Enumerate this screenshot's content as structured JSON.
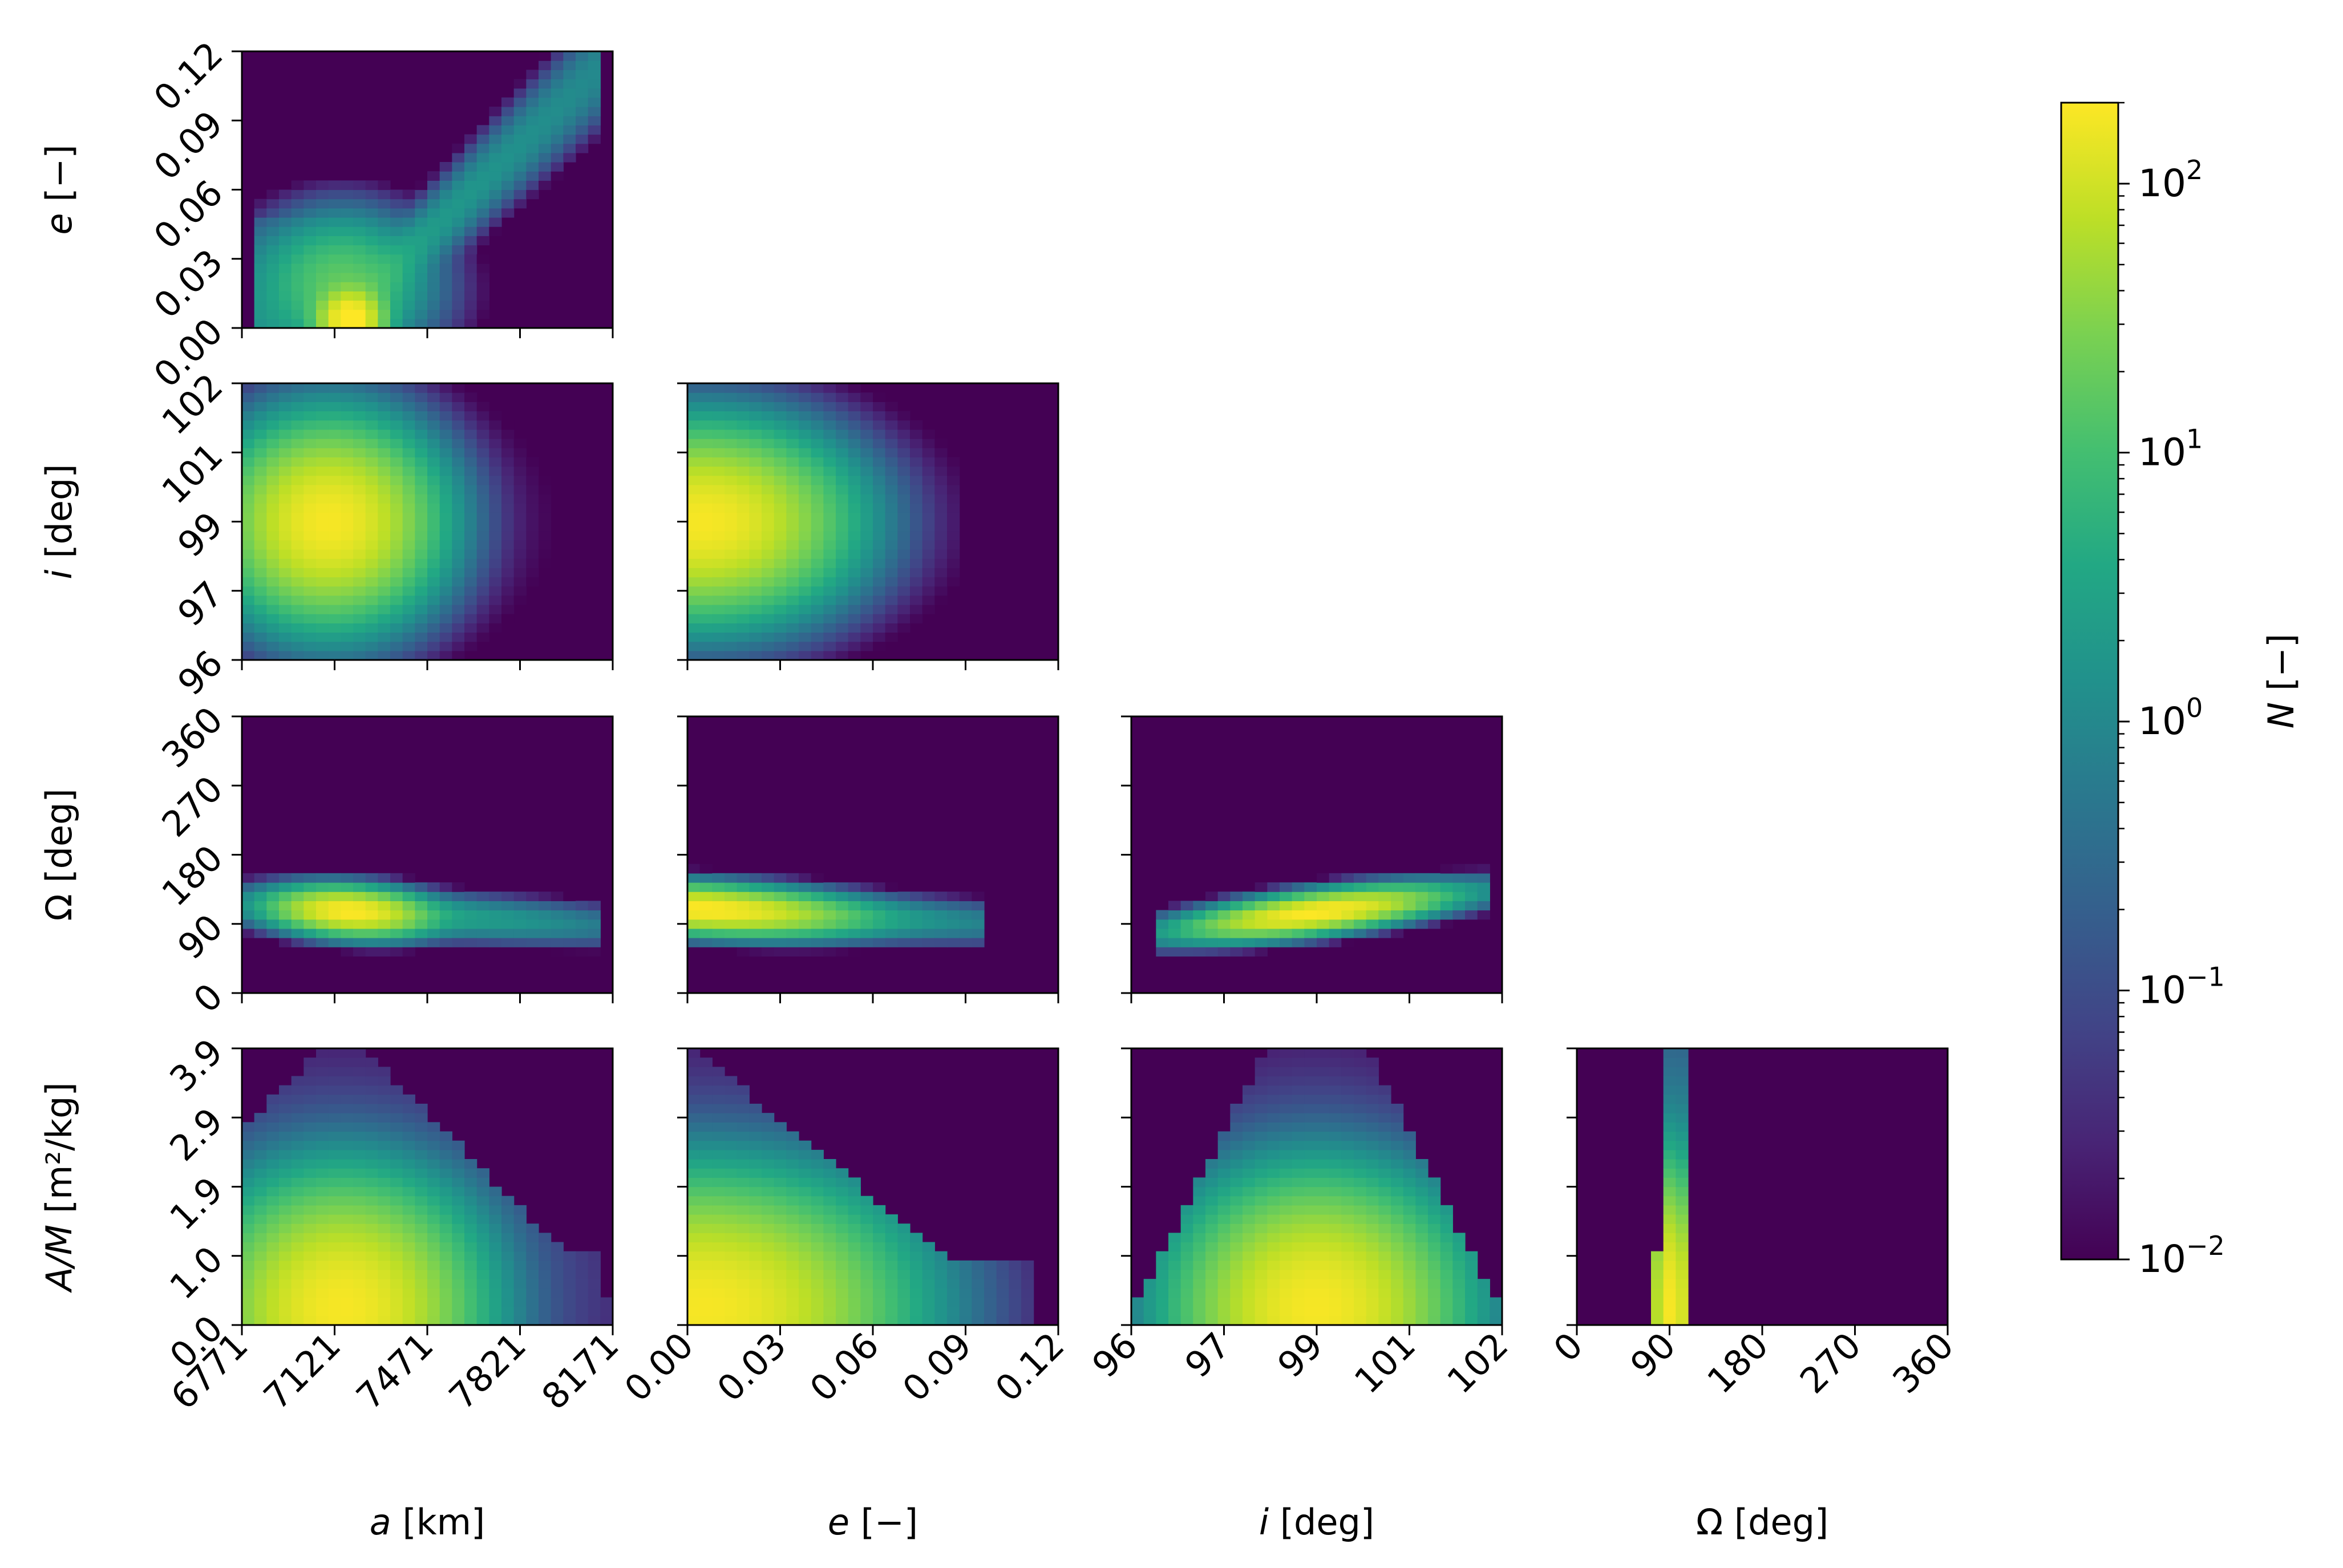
{
  "chart_data": {
    "type": "heatmap",
    "kind": "corner-plot",
    "colormap": "viridis",
    "colorbar": {
      "label_italic": "N",
      "label_rest": " [−]",
      "scale": "log",
      "range": [
        0.01,
        200
      ],
      "ticks": [
        {
          "value": 0.01,
          "base": "10",
          "exp": "−2"
        },
        {
          "value": 0.1,
          "base": "10",
          "exp": "−1"
        },
        {
          "value": 1,
          "base": "10",
          "exp": "0"
        },
        {
          "value": 10,
          "base": "10",
          "exp": "1"
        },
        {
          "value": 100,
          "base": "10",
          "exp": "2"
        }
      ]
    },
    "variables": [
      {
        "key": "a",
        "label_italic": "a",
        "label_rest": " [km]",
        "range": [
          6771,
          8171
        ],
        "ticks": [
          "6771",
          "7121",
          "7471",
          "7821",
          "8171"
        ]
      },
      {
        "key": "e",
        "label_italic": "e",
        "label_rest": " [−]",
        "range": [
          0,
          0.12
        ],
        "ticks": [
          "0.00",
          "0.03",
          "0.06",
          "0.09",
          "0.12"
        ]
      },
      {
        "key": "i",
        "label_italic": "i",
        "label_rest": " [deg]",
        "range": [
          96,
          102
        ],
        "ticks": [
          "96",
          "97",
          "99",
          "101",
          "102"
        ]
      },
      {
        "key": "Omega",
        "label_italic": "",
        "label_rest": "Ω [deg]",
        "range": [
          0,
          360
        ],
        "ticks": [
          "0",
          "90",
          "180",
          "270",
          "360"
        ]
      },
      {
        "key": "AM",
        "label_italic": "A/M",
        "label_rest": " [m²/kg]",
        "range": [
          0,
          4.9
        ],
        "ticks": [
          "0.0",
          "1.0",
          "1.9",
          "2.9",
          "3.9"
        ]
      }
    ],
    "grid": "off",
    "panels": [
      {
        "x": "a",
        "y": "e",
        "note": "thin ridge rising linearly from (7150, 0.005) to (8100, 0.11); peak near a≈7150, e≈0.005"
      },
      {
        "x": "a",
        "y": "i",
        "note": "elliptical blob centered near a≈7100, i≈99"
      },
      {
        "x": "e",
        "y": "i",
        "note": "half-ellipse from e=0 to ≈0.09, peak at e≈0.005, i≈99"
      },
      {
        "x": "a",
        "y": "Omega",
        "note": "narrow band Ω≈80–130, peak at a≈7150, Ω≈105"
      },
      {
        "x": "e",
        "y": "Omega",
        "note": "narrow band Ω≈80–130, peak at e≈0.005, Ω≈105"
      },
      {
        "x": "i",
        "y": "Omega",
        "note": "narrow tilted band, peak at i≈99, Ω≈105"
      },
      {
        "x": "a",
        "y": "AM",
        "note": "triangular distribution, peak at a≈7150, A/M≈0.3"
      },
      {
        "x": "e",
        "y": "AM",
        "note": "triangular distribution, peak at e≈0.005, A/M≈0.3"
      },
      {
        "x": "i",
        "y": "AM",
        "note": "tapering distribution, peak at i≈99, A/M≈0.3"
      },
      {
        "x": "Omega",
        "y": "AM",
        "note": "narrow vertical band Ω≈70–115, peak near Ω≈90, A/M≈0.3"
      }
    ]
  }
}
